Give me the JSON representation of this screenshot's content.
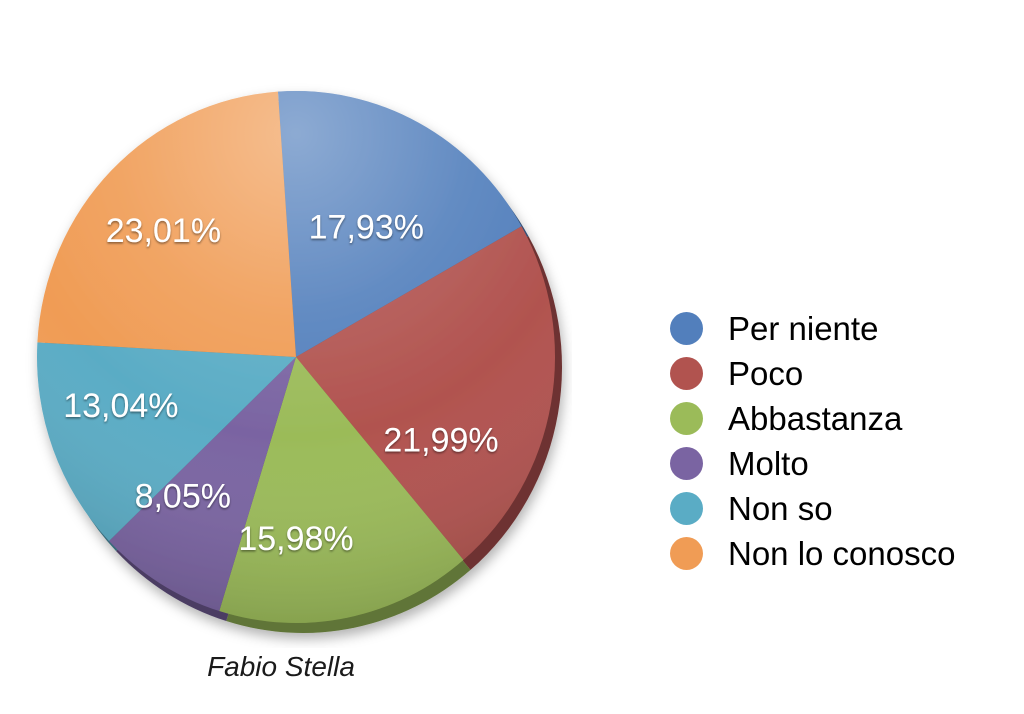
{
  "chart_data": {
    "type": "pie",
    "title": "",
    "categories": [
      "Per niente",
      "Poco",
      "Abbastanza",
      "Molto",
      "Non so",
      "Non lo conosco"
    ],
    "values": [
      17.93,
      21.99,
      15.98,
      8.05,
      13.04,
      23.01
    ],
    "value_labels": [
      "17,93%",
      "21,99%",
      "15,98%",
      "8,05%",
      "13,04%",
      "23,01%"
    ],
    "colors": [
      "#527FBC",
      "#B1534F",
      "#9BBB59",
      "#7A64A2",
      "#5AACC5",
      "#F09C55"
    ],
    "label_text_color": "#ffffff",
    "legend_text_color": "#000000",
    "start_angle_deg": -4,
    "direction": "clockwise",
    "style": "3d-bevel",
    "legend_position": "right",
    "legend_marker_shape": "circle",
    "label_angles_deg": [
      29,
      119,
      180,
      220,
      255,
      313
    ],
    "label_radius": [
      0.56,
      0.64,
      0.68,
      0.68,
      0.7,
      0.7
    ],
    "caption": "Fabio Stella"
  }
}
